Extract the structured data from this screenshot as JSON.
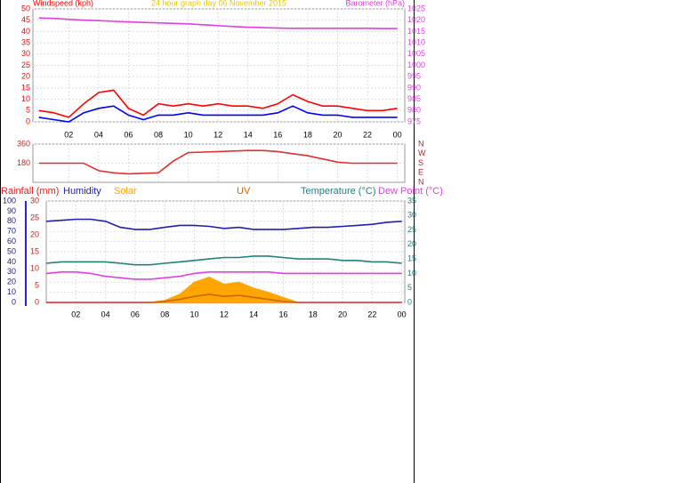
{
  "chart_data": [
    {
      "type": "line",
      "title": "24 hour graph day  06 November 2015",
      "title_color": "#e8c800",
      "ylabel": "Windspeed (kph)",
      "ycolor": "#ff0000",
      "y2label": "Barometer (hPa)",
      "y2color": "#e040e0",
      "xlim": [
        -0.4,
        24.5
      ],
      "xticks": [
        {
          "value": 2,
          "label": "02"
        },
        {
          "value": 4,
          "label": "04"
        },
        {
          "value": 6,
          "label": "06"
        },
        {
          "value": 8,
          "label": "08"
        },
        {
          "value": 10,
          "label": "10"
        },
        12,
        14,
        16,
        18,
        20,
        22,
        {
          "value": 24,
          "label": "00"
        }
      ],
      "ylim": [
        0,
        50
      ],
      "yticks": [
        0,
        5,
        10,
        15,
        20,
        25,
        30,
        35,
        40,
        45,
        50
      ],
      "y2lim": [
        975,
        1025
      ],
      "y2ticks": [
        975,
        980,
        985,
        990,
        995,
        1000,
        1005,
        1010,
        1015,
        1020,
        1025
      ],
      "grid": true,
      "series": [
        {
          "color": "#ff0000",
          "x": [
            0,
            1,
            2,
            3,
            4,
            5,
            6,
            7,
            8,
            9,
            10,
            11,
            12,
            13,
            14,
            15,
            16,
            17,
            18,
            19,
            20,
            21,
            22,
            23,
            24
          ],
          "values": [
            5,
            4,
            2,
            8,
            13,
            14,
            6,
            3,
            8,
            7,
            8,
            7,
            8,
            7,
            7,
            6,
            8,
            12,
            9,
            7,
            7,
            6,
            5,
            5,
            6
          ]
        },
        {
          "color": "#0000ff",
          "x": [
            0,
            1,
            2,
            3,
            4,
            5,
            6,
            7,
            8,
            9,
            10,
            11,
            12,
            13,
            14,
            15,
            16,
            17,
            18,
            19,
            20,
            21,
            22,
            23,
            24
          ],
          "values": [
            2,
            1,
            0,
            4,
            6,
            7,
            3,
            1,
            3,
            3,
            4,
            3,
            3,
            3,
            3,
            3,
            4,
            7,
            4,
            3,
            3,
            2,
            2,
            2,
            2
          ]
        },
        {
          "color": "#e040e0",
          "axis": "y2",
          "x": [
            0,
            1,
            2,
            3,
            4,
            5,
            6,
            7,
            8,
            9,
            10,
            11,
            12,
            13,
            14,
            15,
            16,
            17,
            18,
            19,
            20,
            21,
            22,
            23,
            24
          ],
          "values": [
            1021,
            1020.8,
            1020.4,
            1020,
            1019.8,
            1019.5,
            1019.2,
            1019,
            1018.8,
            1018.6,
            1018.4,
            1018,
            1017.6,
            1017.2,
            1016.9,
            1016.7,
            1016.5,
            1016.4,
            1016.4,
            1016.4,
            1016.4,
            1016.4,
            1016.4,
            1016.3,
            1016.3
          ]
        }
      ]
    },
    {
      "type": "line",
      "ycolor": "#c02020",
      "y2color": "#c02020",
      "xlim": [
        -0.4,
        24.5
      ],
      "xticks": [
        {
          "value": 2,
          "label": "02"
        },
        {
          "value": 4,
          "label": "04"
        },
        {
          "value": 6,
          "label": "06"
        },
        {
          "value": 8,
          "label": "08"
        },
        {
          "value": 10,
          "label": "10"
        },
        12,
        14,
        16,
        18,
        20,
        22,
        {
          "value": 24,
          "label": "00"
        }
      ],
      "ylim": [
        0,
        360
      ],
      "yticks": [
        180,
        360
      ],
      "y2lim": [
        0,
        360
      ],
      "y2ticks": [
        {
          "value": 360,
          "label": "N"
        },
        {
          "value": 270,
          "label": "W"
        },
        {
          "value": 180,
          "label": "S"
        },
        {
          "value": 90,
          "label": "E"
        },
        {
          "value": 0,
          "label": "N"
        }
      ],
      "grid": true,
      "series": [
        {
          "color": "#e03030",
          "x": [
            0,
            1,
            2,
            3,
            4,
            5,
            6,
            7,
            8,
            9,
            10,
            11,
            12,
            13,
            14,
            15,
            16,
            17,
            18,
            19,
            20,
            21,
            22,
            23,
            24
          ],
          "values": [
            180,
            180,
            180,
            180,
            110,
            90,
            80,
            85,
            90,
            200,
            280,
            285,
            290,
            295,
            300,
            300,
            290,
            270,
            250,
            220,
            190,
            180,
            180,
            180,
            180
          ]
        }
      ]
    },
    {
      "type": "line",
      "ycolor": "#202080",
      "y3color": "#c02020",
      "y2color": "#208080",
      "xlim": [
        0,
        24.2
      ],
      "xticks": [
        {
          "value": 2,
          "label": "02"
        },
        {
          "value": 4,
          "label": "04"
        },
        {
          "value": 6,
          "label": "06"
        },
        {
          "value": 8,
          "label": "08"
        },
        {
          "value": 10,
          "label": "10"
        },
        12,
        14,
        16,
        18,
        20,
        22,
        {
          "value": 24,
          "label": "00"
        }
      ],
      "ylim": [
        0,
        100
      ],
      "yticks": [
        0,
        10,
        20,
        30,
        40,
        50,
        60,
        70,
        80,
        90,
        100
      ],
      "y3lim": [
        0,
        30
      ],
      "y3ticks": [
        0,
        5,
        10,
        15,
        20,
        25,
        30
      ],
      "y2lim": [
        0,
        35
      ],
      "y2ticks": [
        0,
        5,
        10,
        15,
        20,
        25,
        30,
        35
      ],
      "grid": true,
      "series": [
        {
          "name": "Rainfall (mm)",
          "color": "#e02020",
          "axis": "y3",
          "x": [
            0,
            24
          ],
          "values": [
            0,
            0
          ]
        },
        {
          "name": "Humidity",
          "color": "#2020b0",
          "x": [
            0,
            1,
            2,
            3,
            4,
            5,
            6,
            7,
            8,
            9,
            10,
            11,
            12,
            13,
            14,
            15,
            16,
            17,
            18,
            19,
            20,
            21,
            22,
            23,
            24
          ],
          "values": [
            80,
            81,
            82,
            82,
            80,
            74,
            72,
            72,
            74,
            76,
            76,
            75,
            73,
            74,
            72,
            72,
            72,
            73,
            74,
            74,
            75,
            76,
            77,
            79,
            80
          ]
        },
        {
          "name": "Solar",
          "color": "#ffa500",
          "area": true,
          "x": [
            7,
            8,
            9,
            10,
            11,
            12,
            13,
            14,
            15,
            16,
            17
          ],
          "values": [
            0,
            2,
            8,
            20,
            25,
            18,
            20,
            14,
            10,
            5,
            0
          ]
        },
        {
          "name": "UV",
          "color": "#cc6600",
          "x": [
            7,
            8,
            9,
            10,
            11,
            12,
            13,
            14,
            15,
            16,
            17
          ],
          "values": [
            0,
            1,
            3,
            6,
            8,
            6,
            7,
            5,
            3,
            1,
            0
          ]
        },
        {
          "name": "Temperature (°C)",
          "color": "#208080",
          "axis": "y2",
          "x": [
            0,
            1,
            2,
            3,
            4,
            5,
            6,
            7,
            8,
            9,
            10,
            11,
            12,
            13,
            14,
            15,
            16,
            17,
            18,
            19,
            20,
            21,
            22,
            23,
            24
          ],
          "values": [
            13.5,
            14,
            14,
            14,
            14,
            13.5,
            13,
            13,
            13.5,
            14,
            14.5,
            15,
            15.5,
            15.5,
            16,
            16,
            15.5,
            15,
            15,
            15,
            14.5,
            14.5,
            14,
            14,
            13.5
          ]
        },
        {
          "name": "Dew Point (°C)",
          "color": "#e040e0",
          "axis": "y2",
          "x": [
            0,
            1,
            2,
            3,
            4,
            5,
            6,
            7,
            8,
            9,
            10,
            11,
            12,
            13,
            14,
            15,
            16,
            17,
            18,
            19,
            20,
            21,
            22,
            23,
            24
          ],
          "values": [
            10,
            10.5,
            10.5,
            10,
            9,
            8.5,
            8,
            8,
            8.5,
            9,
            10,
            10.5,
            10.5,
            10.5,
            10.5,
            10.5,
            10,
            10,
            10,
            10,
            10,
            10,
            10,
            10,
            10
          ]
        }
      ]
    }
  ]
}
